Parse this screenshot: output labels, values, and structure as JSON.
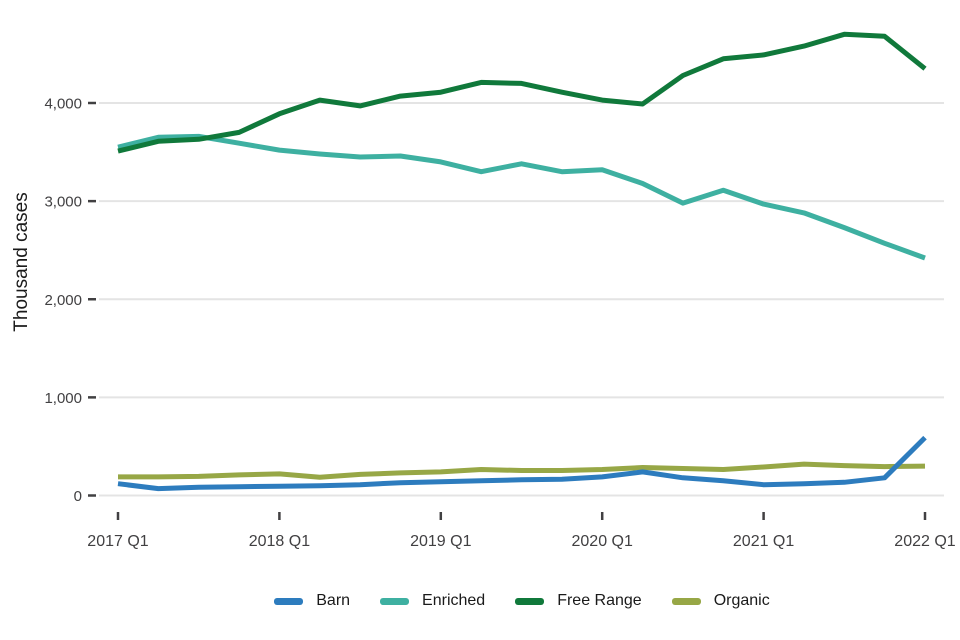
{
  "chart_data": {
    "type": "line",
    "title": "",
    "xlabel": "",
    "ylabel": "Thousand cases",
    "x": [
      "2017 Q1",
      "2017 Q2",
      "2017 Q3",
      "2017 Q4",
      "2018 Q1",
      "2018 Q2",
      "2018 Q3",
      "2018 Q4",
      "2019 Q1",
      "2019 Q2",
      "2019 Q3",
      "2019 Q4",
      "2020 Q1",
      "2020 Q2",
      "2020 Q3",
      "2020 Q4",
      "2021 Q1",
      "2021 Q2",
      "2021 Q3",
      "2021 Q4",
      "2022 Q1"
    ],
    "x_tick_labels": [
      "2017 Q1",
      "2018 Q1",
      "2019 Q1",
      "2020 Q1",
      "2021 Q1",
      "2022 Q1"
    ],
    "y_ticks": [
      0,
      1000,
      2000,
      3000,
      4000
    ],
    "y_tick_labels": [
      "0",
      "1,000",
      "2,000",
      "3,000",
      "4,000"
    ],
    "ylim": [
      0,
      4900
    ],
    "grid": "horizontal-major-only",
    "legend_position": "bottom-center",
    "series": [
      {
        "name": "Barn",
        "color": "#2d7cbe",
        "values": [
          120,
          70,
          85,
          90,
          95,
          100,
          110,
          130,
          140,
          150,
          160,
          165,
          190,
          240,
          180,
          150,
          110,
          120,
          135,
          180,
          590
        ]
      },
      {
        "name": "Enriched",
        "color": "#3eb0a1",
        "values": [
          3550,
          3650,
          3660,
          3590,
          3520,
          3480,
          3450,
          3460,
          3400,
          3300,
          3380,
          3300,
          3320,
          3180,
          2980,
          3110,
          2970,
          2880,
          2730,
          2570,
          2420
        ]
      },
      {
        "name": "Free Range",
        "color": "#10793b",
        "values": [
          3510,
          3610,
          3630,
          3700,
          3890,
          4030,
          3970,
          4070,
          4110,
          4210,
          4200,
          4110,
          4030,
          3990,
          4280,
          4450,
          4490,
          4580,
          4700,
          4680,
          4350
        ]
      },
      {
        "name": "Organic",
        "color": "#97a746",
        "values": [
          190,
          190,
          195,
          210,
          220,
          185,
          215,
          230,
          240,
          265,
          255,
          255,
          265,
          285,
          275,
          265,
          290,
          320,
          305,
          295,
          300
        ]
      }
    ],
    "draw_order": [
      "Enriched",
      "Organic",
      "Free Range",
      "Barn"
    ]
  },
  "colors": {
    "background": "#ffffff",
    "gridline": "#e4e4e4",
    "tick_mark": "#414042",
    "tick_text": "#414042",
    "axis_title_text": "#1a1a1a"
  }
}
